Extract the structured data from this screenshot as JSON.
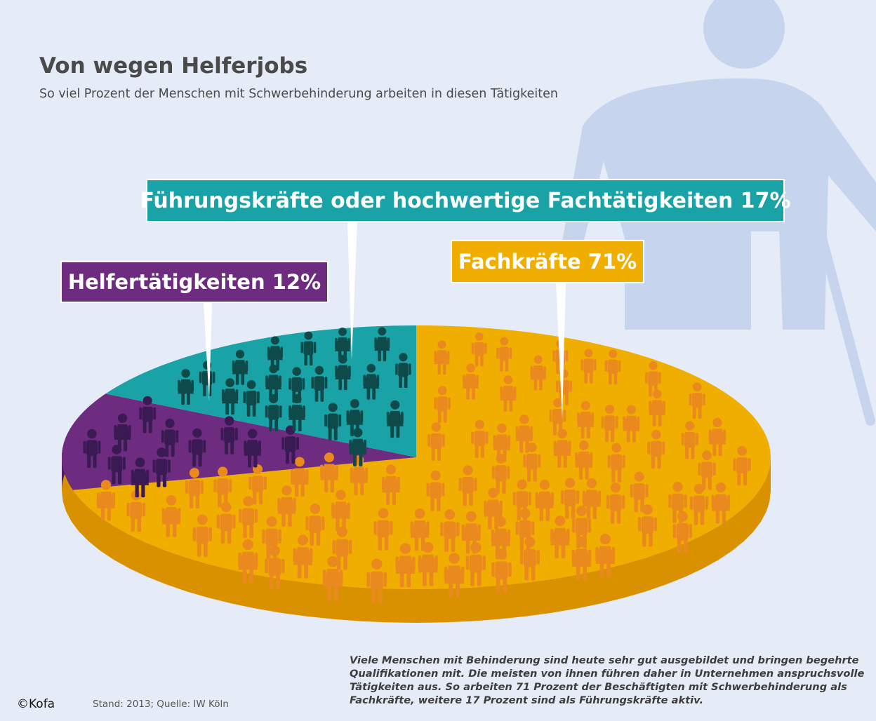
{
  "title": "Von wegen Helferjobs",
  "subtitle": "So viel Prozent der Menschen mit Schwerbehinderung arbeiten in diesen Tätigkeiten",
  "chart_data": {
    "type": "pie",
    "style": "3d-pie with person icons",
    "legend": "callout labels",
    "slices": [
      {
        "label": "Helfertätigkeiten 12%",
        "value": 12,
        "color": "#6e2c80",
        "icon_color": "#3a1a52"
      },
      {
        "label": "Führungskräfte oder hochwertige Fachtätigkeiten 17%",
        "value": 17,
        "color": "#1aa3a6",
        "icon_color": "#0f4a4a"
      },
      {
        "label": "Fachkräfte 71%",
        "value": 71,
        "color": "#f0ae00",
        "icon_color": "#ea8a1e"
      }
    ],
    "side_colors": {
      "helfer": "#4e1b5e",
      "fach": "#d99100"
    }
  },
  "body_text": "Viele Menschen mit Behinderung sind heute sehr gut ausgebildet und bringen begehrte Qualifikationen mit. Die meisten von ihnen führen daher in Unternehmen anspruchsvolle Tätigkeiten aus. So arbeiten 71 Prozent der Beschäftigten mit Schwerbehinderung als Fachkräfte, weitere 17 Prozent sind als Führungskräfte aktiv.",
  "source": "Stand: 2013; Quelle: IW Köln",
  "copyright": "©Kofa",
  "background_icon": "person-with-cane-icon"
}
